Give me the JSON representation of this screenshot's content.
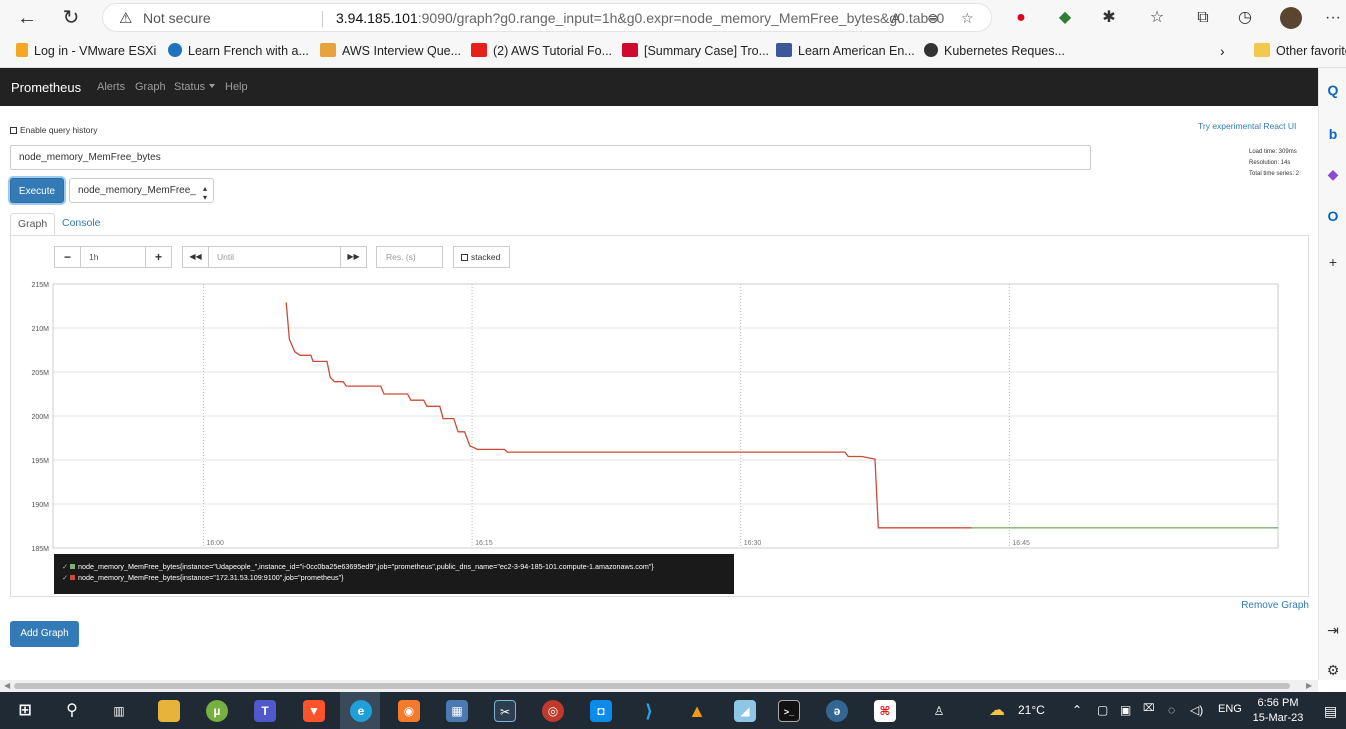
{
  "browser": {
    "security_label": "Not secure",
    "url_host": "3.94.185.101",
    "url_rest": ":9090/graph?g0.range_input=1h&g0.expr=node_memory_MemFree_bytes&g0.tab=0",
    "favorites": [
      {
        "label": "Log in - VMware ESXi",
        "color": "#f5a623"
      },
      {
        "label": "Learn French with a...",
        "color": "#1e73be"
      },
      {
        "label": "AWS Interview Que...",
        "color": "#e8a33d"
      },
      {
        "label": "(2) AWS Tutorial Fo...",
        "color": "#e62117"
      },
      {
        "label": "[Summary Case] Tro...",
        "color": "#cf0a2c"
      },
      {
        "label": "Learn American En...",
        "color": "#3b5998"
      },
      {
        "label": "Kubernetes Reques...",
        "color": "#333333"
      }
    ],
    "other_favorites": "Other favorite"
  },
  "prometheus": {
    "brand": "Prometheus",
    "nav": [
      "Alerts",
      "Graph",
      "Status",
      "Help"
    ],
    "enable_history": "Enable query history",
    "react_ui_link": "Try experimental React UI",
    "expression": "node_memory_MemFree_bytes",
    "execute_label": "Execute",
    "metric_select": "node_memory_MemFree_",
    "stats": {
      "load_time": "Load time: 309ms",
      "resolution": "Resolution: 14s",
      "total_series": "Total time series: 2"
    },
    "tabs": [
      "Graph",
      "Console"
    ],
    "controls": {
      "minus": "−",
      "range": "1h",
      "plus": "+",
      "back": "◀◀",
      "until_placeholder": "Until",
      "forward": "▶▶",
      "res_placeholder": "Res. (s)",
      "stacked": "stacked"
    },
    "remove_graph": "Remove Graph",
    "add_graph": "Add Graph"
  },
  "chart_data": {
    "type": "line",
    "y_ticks": [
      "215M",
      "210M",
      "205M",
      "200M",
      "195M",
      "190M",
      "185M"
    ],
    "x_ticks": [
      "16:00",
      "16:15",
      "16:30",
      "16:45"
    ],
    "ylim": [
      185,
      215
    ],
    "series": [
      {
        "name": "node_memory_MemFree_bytes{instance=\"Udapeople_\",instance_id=\"i-0cc0ba25e63695ed9\",job=\"prometheus\",public_dns_name=\"ec2-3-94-185-101.compute-1.amazonaws.com\"}",
        "color": "#7eb26d",
        "points": [
          [
            16.715,
            187.3
          ],
          [
            17.0,
            187.3
          ]
        ]
      },
      {
        "name": "node_memory_MemFree_bytes{instance=\"172.31.53.109:9100\",job=\"prometheus\"}",
        "color": "#cc4b37",
        "points": [
          [
            16.077,
            212.9
          ],
          [
            16.08,
            208.7
          ],
          [
            16.085,
            207.3
          ],
          [
            16.09,
            206.9
          ],
          [
            16.1,
            206.9
          ],
          [
            16.102,
            206.2
          ],
          [
            16.115,
            206.2
          ],
          [
            16.118,
            204.4
          ],
          [
            16.122,
            203.9
          ],
          [
            16.13,
            203.9
          ],
          [
            16.133,
            203.4
          ],
          [
            16.165,
            203.4
          ],
          [
            16.168,
            202.5
          ],
          [
            16.19,
            202.5
          ],
          [
            16.193,
            201.8
          ],
          [
            16.205,
            201.8
          ],
          [
            16.208,
            201.1
          ],
          [
            16.22,
            201.1
          ],
          [
            16.223,
            199.7
          ],
          [
            16.233,
            199.7
          ],
          [
            16.237,
            198.2
          ],
          [
            16.243,
            198.2
          ],
          [
            16.248,
            196.6
          ],
          [
            16.255,
            196.2
          ],
          [
            16.28,
            196.2
          ],
          [
            16.283,
            195.9
          ],
          [
            16.597,
            195.9
          ],
          [
            16.6,
            195.4
          ],
          [
            16.613,
            195.4
          ],
          [
            16.625,
            195.1
          ],
          [
            16.628,
            187.3
          ],
          [
            16.715,
            187.3
          ]
        ]
      }
    ]
  },
  "taskbar": {
    "weather": "21°C",
    "language": "ENG",
    "time": "6:56 PM",
    "date": "15-Mar-23"
  }
}
